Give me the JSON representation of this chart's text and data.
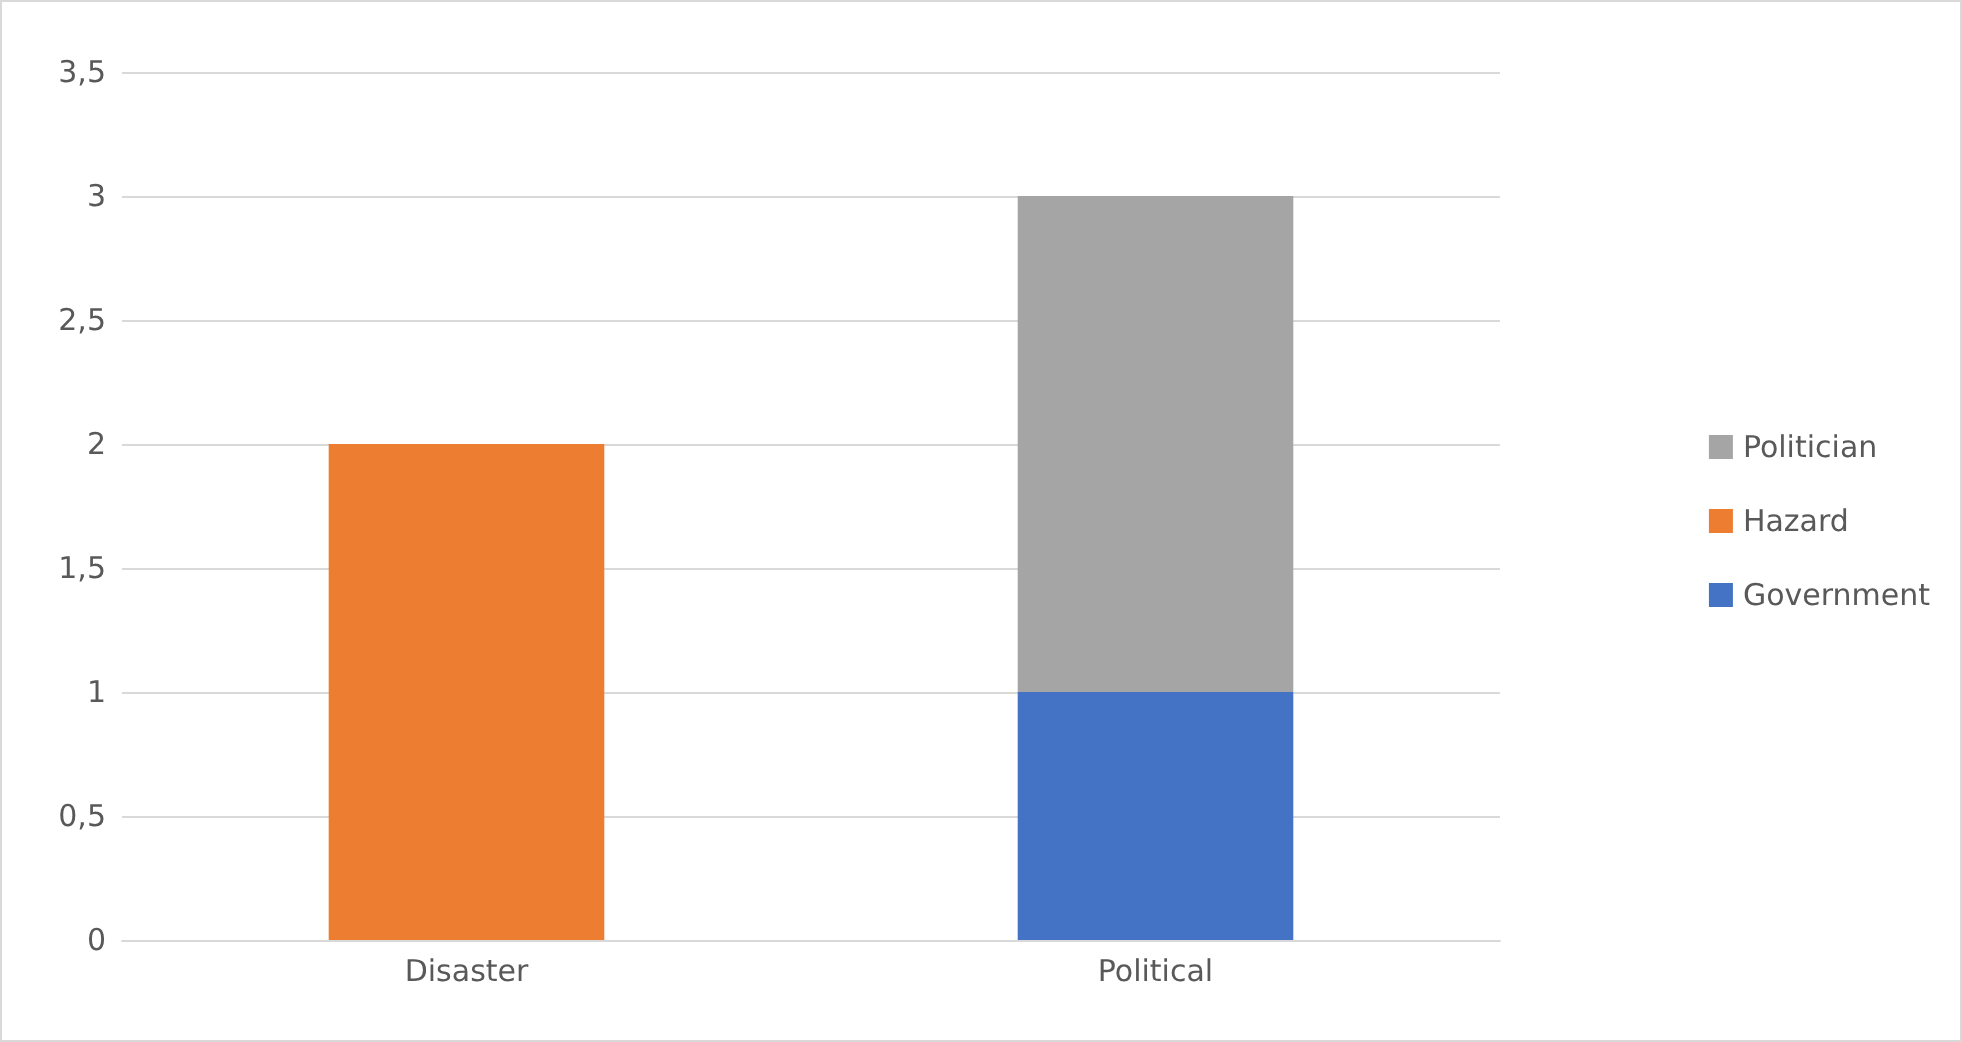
{
  "chart_data": {
    "type": "bar",
    "stacked": true,
    "categories": [
      "Disaster",
      "Political"
    ],
    "series": [
      {
        "name": "Government",
        "color": "#4472c4",
        "values": [
          null,
          1
        ]
      },
      {
        "name": "Hazard",
        "color": "#ed7d31",
        "values": [
          2,
          null
        ]
      },
      {
        "name": "Politician",
        "color": "#a5a5a5",
        "values": [
          null,
          2
        ]
      }
    ],
    "ylim": [
      0,
      3.5
    ],
    "yticks": [
      0,
      {
        "value": 0.5,
        "label": "0,5"
      },
      1,
      {
        "value": 1.5,
        "label": "1,5"
      },
      2,
      {
        "value": 2.5,
        "label": "2,5"
      },
      3,
      {
        "value": 3.5,
        "label": "3,5"
      }
    ],
    "grid": "y",
    "legend": "right"
  }
}
